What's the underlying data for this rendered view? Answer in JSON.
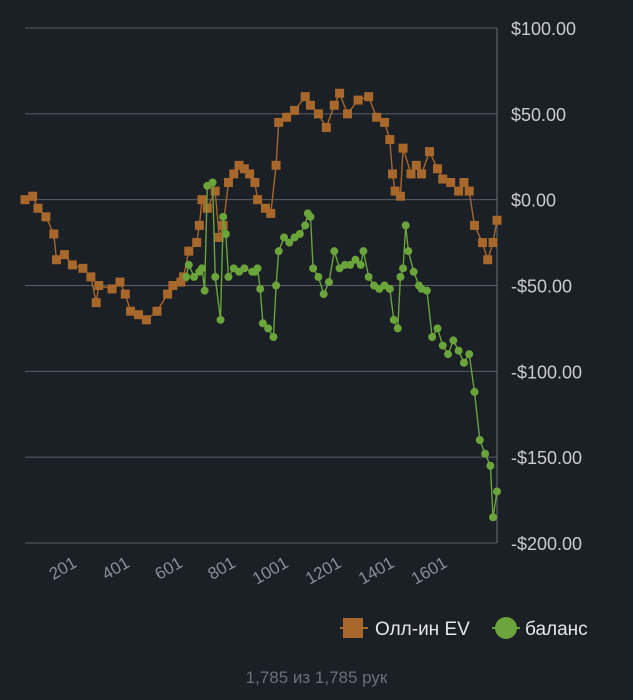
{
  "chart_data": {
    "type": "line",
    "xlim": [
      1,
      1785
    ],
    "ylim": [
      -200,
      100
    ],
    "x_ticks": [
      201,
      401,
      601,
      801,
      1001,
      1201,
      1401,
      1601
    ],
    "y_ticks": [
      100,
      50,
      0,
      -50,
      -100,
      -150,
      -200
    ],
    "y_tick_labels": [
      "$100.00",
      "$50.00",
      "$0.00",
      "-$50.00",
      "-$100.00",
      "-$150.00",
      "-$200.00"
    ],
    "grid": true,
    "legend_position": "bottom-right",
    "series": [
      {
        "name": "Олл-ин EV",
        "color": "#a8672b",
        "marker": "square",
        "points": [
          [
            1,
            0
          ],
          [
            30,
            2
          ],
          [
            50,
            -5
          ],
          [
            80,
            -10
          ],
          [
            110,
            -20
          ],
          [
            120,
            -35
          ],
          [
            150,
            -32
          ],
          [
            180,
            -38
          ],
          [
            220,
            -40
          ],
          [
            250,
            -45
          ],
          [
            270,
            -60
          ],
          [
            280,
            -50
          ],
          [
            330,
            -52
          ],
          [
            360,
            -48
          ],
          [
            380,
            -55
          ],
          [
            400,
            -65
          ],
          [
            430,
            -67
          ],
          [
            460,
            -70
          ],
          [
            500,
            -65
          ],
          [
            540,
            -55
          ],
          [
            560,
            -50
          ],
          [
            590,
            -48
          ],
          [
            600,
            -45
          ],
          [
            620,
            -30
          ],
          [
            650,
            -25
          ],
          [
            660,
            -15
          ],
          [
            670,
            0
          ],
          [
            690,
            -5
          ],
          [
            720,
            5
          ],
          [
            735,
            -22
          ],
          [
            750,
            -15
          ],
          [
            770,
            10
          ],
          [
            790,
            15
          ],
          [
            810,
            20
          ],
          [
            830,
            18
          ],
          [
            850,
            15
          ],
          [
            870,
            10
          ],
          [
            880,
            0
          ],
          [
            910,
            -5
          ],
          [
            930,
            -8
          ],
          [
            950,
            20
          ],
          [
            960,
            45
          ],
          [
            990,
            48
          ],
          [
            1020,
            52
          ],
          [
            1060,
            60
          ],
          [
            1080,
            55
          ],
          [
            1110,
            50
          ],
          [
            1140,
            42
          ],
          [
            1170,
            55
          ],
          [
            1190,
            62
          ],
          [
            1220,
            50
          ],
          [
            1260,
            58
          ],
          [
            1300,
            60
          ],
          [
            1330,
            48
          ],
          [
            1360,
            45
          ],
          [
            1380,
            35
          ],
          [
            1390,
            15
          ],
          [
            1400,
            5
          ],
          [
            1420,
            2
          ],
          [
            1430,
            30
          ],
          [
            1460,
            15
          ],
          [
            1480,
            20
          ],
          [
            1500,
            15
          ],
          [
            1530,
            28
          ],
          [
            1560,
            18
          ],
          [
            1580,
            12
          ],
          [
            1610,
            10
          ],
          [
            1640,
            5
          ],
          [
            1660,
            10
          ],
          [
            1680,
            5
          ],
          [
            1700,
            -15
          ],
          [
            1730,
            -25
          ],
          [
            1750,
            -35
          ],
          [
            1770,
            -25
          ],
          [
            1785,
            -12
          ]
        ]
      },
      {
        "name": "баланс",
        "color": "#6aa43a",
        "marker": "circle",
        "points": [
          [
            610,
            -45
          ],
          [
            620,
            -38
          ],
          [
            640,
            -45
          ],
          [
            660,
            -42
          ],
          [
            670,
            -40
          ],
          [
            680,
            -53
          ],
          [
            690,
            8
          ],
          [
            710,
            10
          ],
          [
            720,
            -45
          ],
          [
            740,
            -70
          ],
          [
            750,
            -10
          ],
          [
            760,
            -20
          ],
          [
            770,
            -45
          ],
          [
            790,
            -40
          ],
          [
            810,
            -42
          ],
          [
            830,
            -40
          ],
          [
            860,
            -42
          ],
          [
            870,
            -42
          ],
          [
            880,
            -40
          ],
          [
            890,
            -52
          ],
          [
            900,
            -72
          ],
          [
            920,
            -75
          ],
          [
            940,
            -80
          ],
          [
            950,
            -50
          ],
          [
            960,
            -30
          ],
          [
            980,
            -22
          ],
          [
            1000,
            -25
          ],
          [
            1020,
            -22
          ],
          [
            1040,
            -20
          ],
          [
            1060,
            -15
          ],
          [
            1070,
            -8
          ],
          [
            1080,
            -10
          ],
          [
            1090,
            -40
          ],
          [
            1110,
            -45
          ],
          [
            1130,
            -55
          ],
          [
            1150,
            -48
          ],
          [
            1170,
            -30
          ],
          [
            1190,
            -40
          ],
          [
            1210,
            -38
          ],
          [
            1230,
            -38
          ],
          [
            1250,
            -35
          ],
          [
            1270,
            -38
          ],
          [
            1280,
            -30
          ],
          [
            1300,
            -45
          ],
          [
            1320,
            -50
          ],
          [
            1340,
            -52
          ],
          [
            1360,
            -50
          ],
          [
            1380,
            -52
          ],
          [
            1395,
            -70
          ],
          [
            1410,
            -75
          ],
          [
            1420,
            -45
          ],
          [
            1430,
            -40
          ],
          [
            1440,
            -15
          ],
          [
            1450,
            -30
          ],
          [
            1470,
            -42
          ],
          [
            1490,
            -50
          ],
          [
            1500,
            -52
          ],
          [
            1520,
            -53
          ],
          [
            1540,
            -80
          ],
          [
            1560,
            -75
          ],
          [
            1580,
            -85
          ],
          [
            1600,
            -90
          ],
          [
            1620,
            -82
          ],
          [
            1640,
            -88
          ],
          [
            1660,
            -95
          ],
          [
            1680,
            -90
          ],
          [
            1700,
            -112
          ],
          [
            1720,
            -140
          ],
          [
            1740,
            -148
          ],
          [
            1760,
            -155
          ],
          [
            1770,
            -185
          ],
          [
            1785,
            -170
          ]
        ]
      }
    ]
  },
  "footer": {
    "text": "1,785 из 1,785 рук"
  }
}
